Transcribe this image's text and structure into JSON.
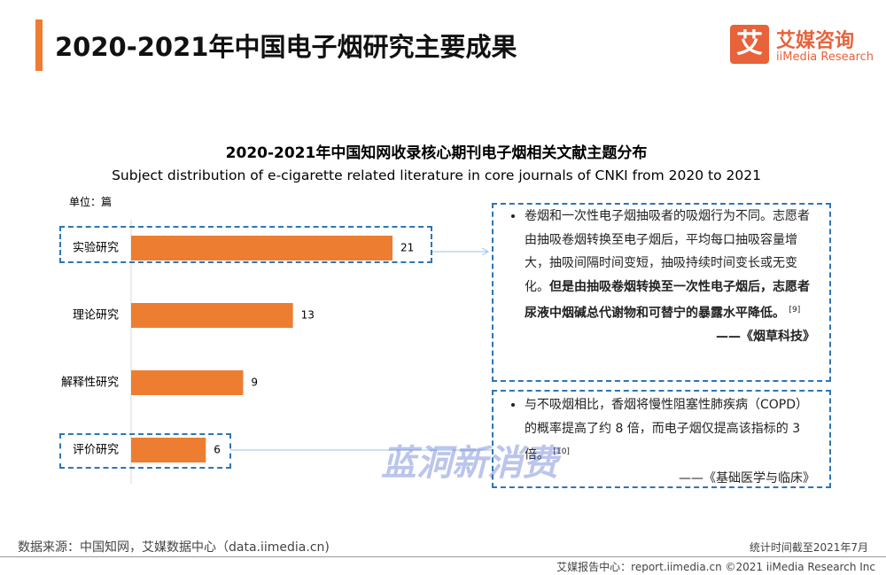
{
  "header": {
    "title": "2020-2021年中国电子烟研究主要成果",
    "logo_icon": "艾",
    "logo_name": "艾媒咨询",
    "logo_sub": "iiMedia Research"
  },
  "chart_data": {
    "type": "bar",
    "orientation": "horizontal",
    "title": "2020-2021年中国知网收录核心期刊电子烟相关文献主题分布",
    "subtitle": "Subject distribution of e-cigarette related literature in core journals of CNKI from 2020 to 2021",
    "unit_label": "单位：篇",
    "categories": [
      "实验研究",
      "理论研究",
      "解释性研究",
      "评价研究"
    ],
    "values": [
      21,
      13,
      9,
      6
    ],
    "color": "#ed7d31",
    "annotations": [
      {
        "text": "卷烟和一次性电子烟抽吸者的吸烟行为不同。志愿者由抽吸卷烟转换至电子烟后，平均每口抽吸容量增大，抽吸间隔时间变短，抽吸持续时间变长或无变化。",
        "bold": "但是由抽吸卷烟转换至一次性电子烟后，志愿者尿液中烟碱总代谢物和可替宁的暴露水平降低。",
        "ref": "[9]",
        "source": "——《烟草科技》"
      },
      {
        "text": "与不吸烟相比，香烟将慢性阻塞性肺疾病（COPD）的概率提高了约 8 倍，而电子烟仅提高该指标的 3倍。",
        "ref": "[10]",
        "source": "——《基础医学与临床》"
      }
    ]
  },
  "watermark": "蓝洞新消费",
  "footer": {
    "source": "数据来源：中国知网，艾媒数据中心（data.iimedia.cn)",
    "date": "统计时间截至2021年7月",
    "copyright": "艾媒报告中心：report.iimedia.cn  ©2021  iiMedia Research  Inc"
  }
}
